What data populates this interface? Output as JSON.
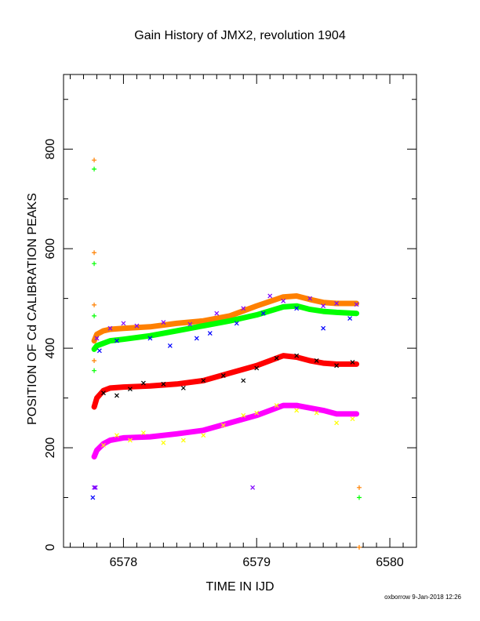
{
  "chart_data": {
    "type": "scatter",
    "title": "Gain History of JMX2, revolution 1904",
    "xlabel": "TIME IN IJD",
    "ylabel": "POSITION OF Cd CALIBRATION PEAKS",
    "xlim": [
      6577.55,
      6580.2
    ],
    "ylim": [
      0,
      950
    ],
    "xticks": [
      6578,
      6579,
      6580
    ],
    "yticks": [
      0,
      200,
      400,
      600,
      800
    ],
    "grid": false,
    "legend": "none",
    "series": [
      {
        "color": "#ff8000",
        "marker": "line",
        "x": [
          6577.78,
          6577.8,
          6577.85,
          6577.9,
          6578.0,
          6578.2,
          6578.4,
          6578.6,
          6578.8,
          6579.0,
          6579.2,
          6579.3,
          6579.4,
          6579.5,
          6579.6,
          6579.75
        ],
        "y": [
          415,
          428,
          435,
          438,
          440,
          443,
          450,
          455,
          465,
          485,
          503,
          505,
          498,
          492,
          490,
          490
        ]
      },
      {
        "color": "#00ff00",
        "marker": "line",
        "x": [
          6577.78,
          6577.8,
          6577.85,
          6577.9,
          6578.0,
          6578.2,
          6578.4,
          6578.6,
          6578.8,
          6579.0,
          6579.2,
          6579.3,
          6579.4,
          6579.5,
          6579.6,
          6579.75
        ],
        "y": [
          398,
          405,
          410,
          415,
          418,
          425,
          435,
          445,
          455,
          467,
          483,
          485,
          478,
          474,
          472,
          470
        ]
      },
      {
        "color": "#ff0000",
        "marker": "line",
        "x": [
          6577.78,
          6577.8,
          6577.85,
          6577.9,
          6578.0,
          6578.2,
          6578.4,
          6578.6,
          6578.8,
          6579.0,
          6579.2,
          6579.3,
          6579.4,
          6579.5,
          6579.6,
          6579.75
        ],
        "y": [
          282,
          300,
          315,
          320,
          322,
          324,
          328,
          335,
          350,
          365,
          385,
          382,
          375,
          370,
          368,
          368
        ]
      },
      {
        "color": "#ff00ff",
        "marker": "line",
        "x": [
          6577.78,
          6577.8,
          6577.85,
          6577.9,
          6578.0,
          6578.2,
          6578.4,
          6578.6,
          6578.8,
          6579.0,
          6579.2,
          6579.3,
          6579.4,
          6579.5,
          6579.6,
          6579.75
        ],
        "y": [
          182,
          195,
          208,
          215,
          220,
          222,
          228,
          235,
          250,
          265,
          285,
          285,
          280,
          275,
          268,
          268
        ]
      },
      {
        "color": "#7f00ff",
        "marker": "x",
        "x": [
          6577.8,
          6577.9,
          6578.0,
          6578.1,
          6578.3,
          6578.5,
          6578.7,
          6578.9,
          6579.1,
          6579.2,
          6579.4,
          6579.5,
          6579.6,
          6579.75,
          6577.78,
          6577.79,
          6578.97
        ],
        "y": [
          420,
          440,
          450,
          445,
          452,
          448,
          470,
          480,
          505,
          495,
          500,
          485,
          490,
          488,
          120,
          120,
          120
        ]
      },
      {
        "color": "#0000ff",
        "marker": "x",
        "x": [
          6577.82,
          6577.95,
          6578.2,
          6578.35,
          6578.55,
          6578.65,
          6578.85,
          6579.05,
          6579.3,
          6579.5,
          6579.7,
          6577.77
        ],
        "y": [
          395,
          415,
          420,
          405,
          420,
          430,
          450,
          470,
          480,
          440,
          460,
          100
        ]
      },
      {
        "color": "#000000",
        "marker": "x",
        "x": [
          6577.85,
          6577.95,
          6578.05,
          6578.15,
          6578.3,
          6578.45,
          6578.6,
          6578.75,
          6578.9,
          6579.0,
          6579.15,
          6579.3,
          6579.45,
          6579.6,
          6579.72
        ],
        "y": [
          310,
          305,
          318,
          330,
          328,
          320,
          335,
          345,
          335,
          360,
          380,
          385,
          375,
          365,
          372
        ]
      },
      {
        "color": "#ffff00",
        "marker": "x",
        "x": [
          6577.85,
          6577.95,
          6578.05,
          6578.15,
          6578.3,
          6578.45,
          6578.6,
          6578.75,
          6578.9,
          6579.0,
          6579.15,
          6579.3,
          6579.45,
          6579.6,
          6579.72
        ],
        "y": [
          205,
          225,
          215,
          230,
          210,
          215,
          225,
          245,
          265,
          270,
          285,
          275,
          270,
          250,
          258
        ]
      },
      {
        "color": "#ff8000",
        "marker": "+",
        "x": [
          6577.78,
          6577.78,
          6577.78,
          6577.78,
          6579.77,
          6579.77
        ],
        "y": [
          778,
          592,
          487,
          375,
          120,
          0
        ]
      },
      {
        "color": "#00ff00",
        "marker": "+",
        "x": [
          6577.78,
          6577.78,
          6577.78,
          6577.78,
          6579.77
        ],
        "y": [
          760,
          570,
          465,
          355,
          100
        ]
      }
    ]
  },
  "footer": {
    "credit": "oxborrow  9-Jan-2018 12:26"
  }
}
